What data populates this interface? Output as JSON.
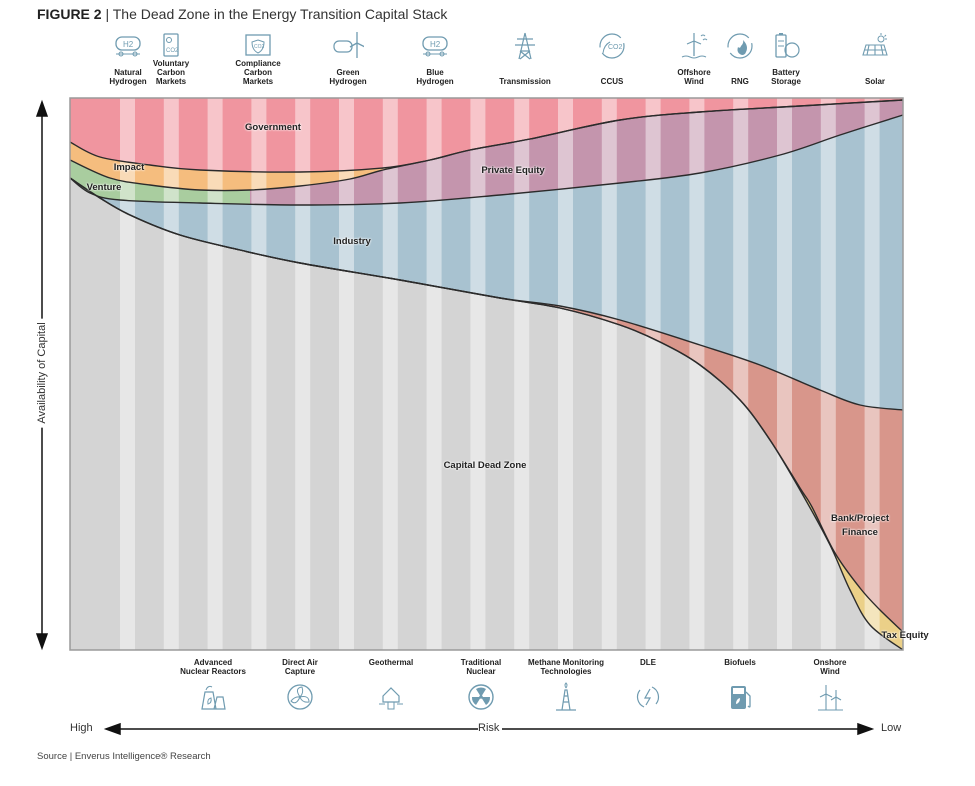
{
  "figure": {
    "label": "FIGURE 2",
    "separator": " | ",
    "title": "The Dead Zone in the Energy Transition Capital Stack"
  },
  "top_technologies": [
    {
      "label": "Natural\nHydrogen",
      "icon": "hydrogen-tank-icon"
    },
    {
      "label": "Voluntary\nCarbon\nMarkets",
      "icon": "co2-certificate-icon"
    },
    {
      "label": "Compliance\nCarbon\nMarkets",
      "icon": "co2-shield-icon"
    },
    {
      "label": "Green\nHydrogen",
      "icon": "hydrogen-wind-icon"
    },
    {
      "label": "Blue\nHydrogen",
      "icon": "hydrogen-tank-icon"
    },
    {
      "label": "Transmission",
      "icon": "transmission-tower-icon"
    },
    {
      "label": "CCUS",
      "icon": "co2-leaf-icon"
    },
    {
      "label": "Offshore\nWind",
      "icon": "offshore-wind-icon"
    },
    {
      "label": "RNG",
      "icon": "rng-flame-icon"
    },
    {
      "label": "Battery\nStorage",
      "icon": "battery-icon"
    },
    {
      "label": "Solar",
      "icon": "solar-panel-icon"
    }
  ],
  "bottom_technologies": [
    {
      "label": "Advanced\nNuclear Reactors",
      "icon": "nuclear-plant-icon"
    },
    {
      "label": "Direct Air\nCapture",
      "icon": "fan-icon"
    },
    {
      "label": "Geothermal",
      "icon": "geothermal-house-icon"
    },
    {
      "label": "Traditional\nNuclear",
      "icon": "radiation-icon"
    },
    {
      "label": "Methane Monitoring\nTechnologies",
      "icon": "oil-rig-icon"
    },
    {
      "label": "DLE",
      "icon": "lightning-cycle-icon"
    },
    {
      "label": "Biofuels",
      "icon": "fuel-pump-icon"
    },
    {
      "label": "Onshore\nWind",
      "icon": "wind-turbines-icon"
    }
  ],
  "regions": {
    "government": "Government",
    "impact": "Impact",
    "venture": "Venture",
    "private_equity": "Private Equity",
    "industry": "Industry",
    "dead_zone": "Capital Dead Zone",
    "bank": "Bank/Project\nFinance",
    "tax_equity": "Tax Equity"
  },
  "colors": {
    "government": "#f0959f",
    "impact": "#f5bd7e",
    "venture": "#a9cd9f",
    "private_equity": "#c495ad",
    "industry": "#a8c2d0",
    "dead_zone": "#d4d4d4",
    "bank": "#d8968b",
    "tax_equity": "#ebd088",
    "icon": "#6f9bb0"
  },
  "axes": {
    "y_label": "Availability of Capital",
    "x_label": "Risk",
    "x_left": "High",
    "x_right": "Low"
  },
  "source": "Source | Enverus Intelligence® Research"
}
